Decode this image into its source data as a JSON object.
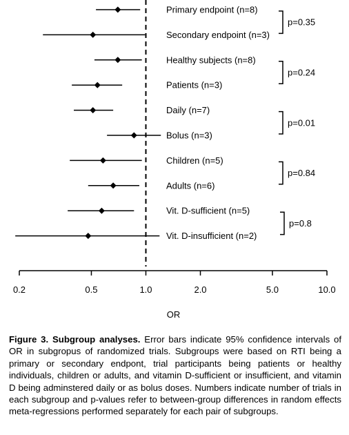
{
  "chart_data": {
    "type": "forest",
    "x_scale": "log",
    "xlim": [
      0.2,
      10.0
    ],
    "xlabel": "OR",
    "x_ticks": [
      0.2,
      0.5,
      1.0,
      2.0,
      5.0,
      10.0
    ],
    "x_tick_labels": [
      "0.2",
      "0.5",
      "1.0",
      "2.0",
      "5.0",
      "10.0"
    ],
    "reference_line": 1.0,
    "rows": [
      {
        "label": "Primary endpoint (n=8)",
        "or": 0.7,
        "lo": 0.53,
        "hi": 0.93
      },
      {
        "label": "Secondary endpoint (n=3)",
        "or": 0.51,
        "lo": 0.27,
        "hi": 0.99
      },
      {
        "label": "Healthy subjects (n=8)",
        "or": 0.7,
        "lo": 0.52,
        "hi": 0.95
      },
      {
        "label": "Patients (n=3)",
        "or": 0.54,
        "lo": 0.39,
        "hi": 0.74
      },
      {
        "label": "Daily (n=7)",
        "or": 0.51,
        "lo": 0.4,
        "hi": 0.66
      },
      {
        "label": "Bolus (n=3)",
        "or": 0.86,
        "lo": 0.61,
        "hi": 1.21
      },
      {
        "label": "Children (n=5)",
        "or": 0.58,
        "lo": 0.38,
        "hi": 0.95
      },
      {
        "label": "Adults (n=6)",
        "or": 0.66,
        "lo": 0.48,
        "hi": 0.92
      },
      {
        "label": "Vit. D-sufficient (n=5)",
        "or": 0.57,
        "lo": 0.37,
        "hi": 0.86
      },
      {
        "label": "Vit. D-insufficient (n=2)",
        "or": 0.48,
        "lo": 0.19,
        "hi": 1.19
      }
    ],
    "pair_pvalues": [
      "p=0.35",
      "p=0.24",
      "p=0.01",
      "p=0.84",
      "p=0.8"
    ]
  },
  "caption": {
    "lead": "Figure 3. Subgroup analyses.",
    "body": " Error bars indicate 95% confidence intervals of OR in subgropus of randomized trials. Subgroups were based on RTI being a primary or secondary endpont, trial participants being patients or healthy individuals, children or adults, and vitamin D-sufficient or insufficient, and vitamin D being adminstered daily or as bolus doses. Numbers indicate number of trials in each subgroup and p-values refer to between-group differences in random effects meta-regressions performed separately for each pair of subgroups."
  }
}
